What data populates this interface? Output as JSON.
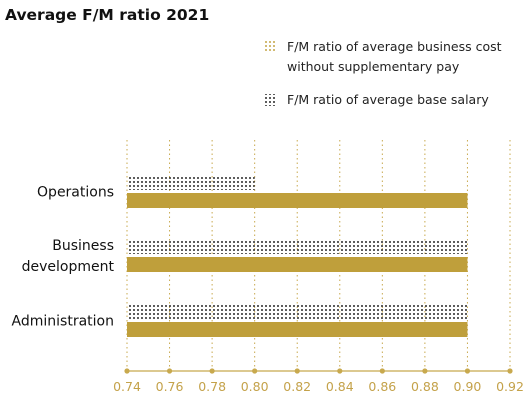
{
  "colors": {
    "gold": "#bf9f3b",
    "dots": "#1a1a1a",
    "axis": "#c8a94e",
    "grid": "#c8a94e",
    "tick_text": "#c4a24a"
  },
  "chart_data": {
    "type": "bar",
    "orientation": "horizontal",
    "title": "Average F/M ratio 2021",
    "categories": [
      "Operations",
      "Business development",
      "Administration"
    ],
    "category_lines": [
      [
        "Operations"
      ],
      [
        "Business",
        "development"
      ],
      [
        "Administration"
      ]
    ],
    "series": [
      {
        "name": "F/M ratio of average base salary",
        "legend_lines": [
          "F/M ratio of average base salary"
        ],
        "pattern": "dots",
        "values": [
          0.8,
          0.9,
          0.9
        ]
      },
      {
        "name": "F/M ratio of average business cost without supplementary pay",
        "legend_lines": [
          "F/M ratio of average business cost",
          "without supplementary pay"
        ],
        "pattern": "solid",
        "values": [
          0.9,
          0.9,
          0.9
        ]
      }
    ],
    "xlim": [
      0.74,
      0.92
    ],
    "xticks": [
      "0.74",
      "0.76",
      "0.78",
      "0.80",
      "0.82",
      "0.84",
      "0.86",
      "0.88",
      "0.90",
      "0.92"
    ],
    "grid": "vertical dotted",
    "legend_position": "top-right"
  }
}
